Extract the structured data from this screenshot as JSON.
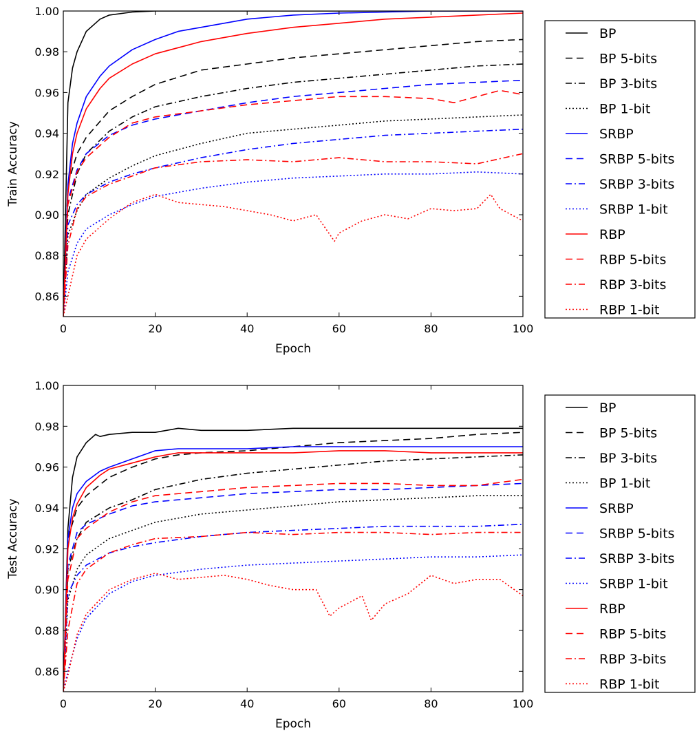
{
  "chart_data": [
    {
      "type": "line",
      "xlabel": "Epoch",
      "ylabel": "Train Accuracy",
      "xlim": [
        0,
        100
      ],
      "ylim": [
        0.85,
        1.0
      ],
      "xticks": [
        0,
        20,
        40,
        60,
        80,
        100
      ],
      "yticks": [
        0.86,
        0.88,
        0.9,
        0.92,
        0.94,
        0.96,
        0.98,
        1.0
      ],
      "ytick_labels": [
        "0.86",
        "0.88",
        "0.90",
        "0.92",
        "0.94",
        "0.96",
        "0.98",
        "1.00"
      ],
      "grid": false,
      "legend": "outside-right",
      "series": [
        {
          "name": "BP",
          "color": "#000000",
          "style": "solid",
          "x": [
            0,
            1,
            2,
            3,
            5,
            8,
            10,
            15,
            20,
            100
          ],
          "y": [
            0.85,
            0.955,
            0.972,
            0.98,
            0.99,
            0.996,
            0.998,
            0.9995,
            1.0,
            1.0
          ]
        },
        {
          "name": "BP 5-bits",
          "color": "#000000",
          "style": "dashed",
          "x": [
            0,
            1,
            3,
            5,
            10,
            15,
            20,
            30,
            40,
            50,
            60,
            70,
            80,
            90,
            100
          ],
          "y": [
            0.85,
            0.915,
            0.93,
            0.938,
            0.951,
            0.958,
            0.964,
            0.971,
            0.974,
            0.977,
            0.979,
            0.981,
            0.983,
            0.985,
            0.986
          ]
        },
        {
          "name": "BP 3-bits",
          "color": "#000000",
          "style": "dashdot",
          "x": [
            0,
            1,
            3,
            5,
            10,
            15,
            20,
            30,
            40,
            50,
            60,
            70,
            80,
            90,
            100
          ],
          "y": [
            0.85,
            0.9,
            0.92,
            0.93,
            0.941,
            0.948,
            0.953,
            0.958,
            0.962,
            0.965,
            0.967,
            0.969,
            0.971,
            0.973,
            0.974
          ]
        },
        {
          "name": "BP 1-bit",
          "color": "#000000",
          "style": "dotted",
          "x": [
            0,
            1,
            3,
            5,
            10,
            15,
            20,
            30,
            40,
            50,
            60,
            70,
            80,
            90,
            100
          ],
          "y": [
            0.85,
            0.89,
            0.902,
            0.91,
            0.918,
            0.924,
            0.929,
            0.935,
            0.94,
            0.942,
            0.944,
            0.946,
            0.947,
            0.948,
            0.949
          ]
        },
        {
          "name": "SRBP",
          "color": "#0000ff",
          "style": "solid",
          "x": [
            0,
            1,
            2,
            3,
            5,
            8,
            10,
            15,
            20,
            25,
            30,
            40,
            50,
            60,
            70,
            80,
            100
          ],
          "y": [
            0.85,
            0.915,
            0.935,
            0.945,
            0.958,
            0.968,
            0.973,
            0.981,
            0.986,
            0.99,
            0.992,
            0.996,
            0.998,
            0.999,
            0.9995,
            1.0,
            1.0
          ]
        },
        {
          "name": "SRBP 5-bits",
          "color": "#0000ff",
          "style": "dashed",
          "x": [
            0,
            1,
            3,
            5,
            10,
            15,
            20,
            30,
            40,
            50,
            60,
            70,
            80,
            90,
            100
          ],
          "y": [
            0.85,
            0.907,
            0.922,
            0.93,
            0.939,
            0.944,
            0.947,
            0.951,
            0.955,
            0.958,
            0.96,
            0.962,
            0.964,
            0.965,
            0.966
          ]
        },
        {
          "name": "SRBP 3-bits",
          "color": "#0000ff",
          "style": "dashdot",
          "x": [
            0,
            1,
            3,
            5,
            10,
            15,
            20,
            30,
            40,
            50,
            60,
            70,
            80,
            90,
            100
          ],
          "y": [
            0.85,
            0.895,
            0.905,
            0.91,
            0.916,
            0.92,
            0.923,
            0.928,
            0.932,
            0.935,
            0.937,
            0.939,
            0.94,
            0.941,
            0.942
          ]
        },
        {
          "name": "SRBP 1-bit",
          "color": "#0000ff",
          "style": "dotted",
          "x": [
            0,
            1,
            3,
            5,
            10,
            15,
            20,
            30,
            40,
            50,
            60,
            70,
            80,
            90,
            100
          ],
          "y": [
            0.85,
            0.872,
            0.886,
            0.893,
            0.9,
            0.905,
            0.909,
            0.913,
            0.916,
            0.918,
            0.919,
            0.92,
            0.92,
            0.921,
            0.92
          ]
        },
        {
          "name": "RBP",
          "color": "#ff0000",
          "style": "solid",
          "x": [
            0,
            1,
            2,
            3,
            5,
            8,
            10,
            15,
            20,
            25,
            30,
            40,
            50,
            60,
            70,
            80,
            90,
            100
          ],
          "y": [
            0.85,
            0.91,
            0.93,
            0.94,
            0.952,
            0.962,
            0.967,
            0.974,
            0.979,
            0.982,
            0.985,
            0.989,
            0.992,
            0.994,
            0.996,
            0.997,
            0.998,
            0.999
          ]
        },
        {
          "name": "RBP 5-bits",
          "color": "#ff0000",
          "style": "dashed",
          "x": [
            0,
            1,
            3,
            5,
            10,
            15,
            20,
            30,
            40,
            50,
            60,
            70,
            80,
            85,
            90,
            95,
            100
          ],
          "y": [
            0.85,
            0.905,
            0.921,
            0.928,
            0.938,
            0.945,
            0.948,
            0.951,
            0.954,
            0.956,
            0.958,
            0.958,
            0.957,
            0.955,
            0.958,
            0.961,
            0.959
          ]
        },
        {
          "name": "RBP 3-bits",
          "color": "#ff0000",
          "style": "dashdot",
          "x": [
            0,
            1,
            3,
            5,
            10,
            15,
            20,
            30,
            40,
            50,
            60,
            70,
            80,
            90,
            100
          ],
          "y": [
            0.85,
            0.885,
            0.903,
            0.909,
            0.915,
            0.919,
            0.923,
            0.926,
            0.927,
            0.926,
            0.928,
            0.926,
            0.926,
            0.925,
            0.93
          ]
        },
        {
          "name": "RBP 1-bit",
          "color": "#ff0000",
          "style": "dotted",
          "x": [
            0,
            1,
            3,
            5,
            10,
            15,
            20,
            25,
            30,
            35,
            40,
            45,
            50,
            55,
            59,
            60,
            65,
            70,
            75,
            80,
            85,
            90,
            93,
            95,
            100
          ],
          "y": [
            0.85,
            0.86,
            0.88,
            0.888,
            0.898,
            0.906,
            0.91,
            0.906,
            0.905,
            0.904,
            0.902,
            0.9,
            0.897,
            0.9,
            0.887,
            0.891,
            0.897,
            0.9,
            0.898,
            0.903,
            0.902,
            0.903,
            0.91,
            0.903,
            0.897
          ]
        }
      ]
    },
    {
      "type": "line",
      "xlabel": "Epoch",
      "ylabel": "Test Accuracy",
      "xlim": [
        0,
        100
      ],
      "ylim": [
        0.85,
        1.0
      ],
      "xticks": [
        0,
        20,
        40,
        60,
        80,
        100
      ],
      "yticks": [
        0.86,
        0.88,
        0.9,
        0.92,
        0.94,
        0.96,
        0.98,
        1.0
      ],
      "ytick_labels": [
        "0.86",
        "0.88",
        "0.90",
        "0.92",
        "0.94",
        "0.96",
        "0.98",
        "1.00"
      ],
      "grid": false,
      "legend": "outside-right",
      "series": [
        {
          "name": "BP",
          "color": "#000000",
          "style": "solid",
          "x": [
            0,
            1,
            2,
            3,
            5,
            7,
            8,
            10,
            15,
            20,
            25,
            30,
            40,
            50,
            60,
            70,
            80,
            90,
            100
          ],
          "y": [
            0.85,
            0.93,
            0.955,
            0.965,
            0.972,
            0.976,
            0.975,
            0.976,
            0.977,
            0.977,
            0.979,
            0.978,
            0.978,
            0.979,
            0.979,
            0.979,
            0.979,
            0.979,
            0.979
          ]
        },
        {
          "name": "BP 5-bits",
          "color": "#000000",
          "style": "dashed",
          "x": [
            0,
            1,
            3,
            5,
            10,
            15,
            20,
            25,
            30,
            40,
            50,
            60,
            70,
            80,
            90,
            100
          ],
          "y": [
            0.85,
            0.925,
            0.94,
            0.946,
            0.955,
            0.96,
            0.964,
            0.966,
            0.967,
            0.968,
            0.97,
            0.972,
            0.973,
            0.974,
            0.976,
            0.977
          ]
        },
        {
          "name": "BP 3-bits",
          "color": "#000000",
          "style": "dashdot",
          "x": [
            0,
            1,
            3,
            5,
            10,
            15,
            20,
            30,
            40,
            50,
            60,
            70,
            80,
            90,
            100
          ],
          "y": [
            0.85,
            0.91,
            0.925,
            0.933,
            0.94,
            0.944,
            0.949,
            0.954,
            0.957,
            0.959,
            0.961,
            0.963,
            0.964,
            0.965,
            0.966
          ]
        },
        {
          "name": "BP 1-bit",
          "color": "#000000",
          "style": "dotted",
          "x": [
            0,
            1,
            3,
            5,
            10,
            15,
            20,
            30,
            40,
            50,
            60,
            70,
            80,
            90,
            100
          ],
          "y": [
            0.85,
            0.895,
            0.91,
            0.917,
            0.925,
            0.929,
            0.933,
            0.937,
            0.939,
            0.941,
            0.943,
            0.944,
            0.945,
            0.946,
            0.946
          ]
        },
        {
          "name": "SRBP",
          "color": "#0000ff",
          "style": "solid",
          "x": [
            0,
            1,
            2,
            3,
            5,
            8,
            10,
            15,
            20,
            25,
            30,
            40,
            50,
            60,
            70,
            80,
            90,
            100
          ],
          "y": [
            0.85,
            0.925,
            0.94,
            0.947,
            0.953,
            0.958,
            0.96,
            0.964,
            0.968,
            0.969,
            0.969,
            0.969,
            0.97,
            0.97,
            0.97,
            0.97,
            0.97,
            0.97
          ]
        },
        {
          "name": "SRBP 5-bits",
          "color": "#0000ff",
          "style": "dashed",
          "x": [
            0,
            1,
            3,
            5,
            10,
            15,
            20,
            30,
            40,
            50,
            60,
            70,
            80,
            90,
            100
          ],
          "y": [
            0.85,
            0.912,
            0.928,
            0.932,
            0.937,
            0.941,
            0.943,
            0.945,
            0.947,
            0.948,
            0.949,
            0.949,
            0.95,
            0.951,
            0.952
          ]
        },
        {
          "name": "SRBP 3-bits",
          "color": "#0000ff",
          "style": "dashdot",
          "x": [
            0,
            1,
            3,
            5,
            10,
            15,
            20,
            30,
            40,
            50,
            60,
            70,
            80,
            90,
            100
          ],
          "y": [
            0.85,
            0.898,
            0.907,
            0.912,
            0.918,
            0.921,
            0.923,
            0.926,
            0.928,
            0.929,
            0.93,
            0.931,
            0.931,
            0.931,
            0.932
          ]
        },
        {
          "name": "SRBP 1-bit",
          "color": "#0000ff",
          "style": "dotted",
          "x": [
            0,
            1,
            3,
            5,
            10,
            15,
            20,
            30,
            40,
            50,
            60,
            70,
            80,
            90,
            100
          ],
          "y": [
            0.85,
            0.86,
            0.876,
            0.886,
            0.898,
            0.904,
            0.907,
            0.91,
            0.912,
            0.913,
            0.914,
            0.915,
            0.916,
            0.916,
            0.917
          ]
        },
        {
          "name": "RBP",
          "color": "#ff0000",
          "style": "solid",
          "x": [
            0,
            1,
            2,
            3,
            5,
            8,
            10,
            15,
            20,
            25,
            30,
            40,
            50,
            60,
            70,
            80,
            90,
            100
          ],
          "y": [
            0.85,
            0.92,
            0.935,
            0.942,
            0.95,
            0.956,
            0.959,
            0.962,
            0.965,
            0.967,
            0.967,
            0.967,
            0.967,
            0.968,
            0.968,
            0.967,
            0.967,
            0.967
          ]
        },
        {
          "name": "RBP 5-bits",
          "color": "#ff0000",
          "style": "dashed",
          "x": [
            0,
            1,
            3,
            5,
            10,
            15,
            20,
            30,
            40,
            50,
            60,
            70,
            80,
            90,
            100
          ],
          "y": [
            0.85,
            0.905,
            0.925,
            0.93,
            0.938,
            0.943,
            0.946,
            0.948,
            0.95,
            0.951,
            0.952,
            0.952,
            0.951,
            0.951,
            0.954
          ]
        },
        {
          "name": "RBP 3-bits",
          "color": "#ff0000",
          "style": "dashdot",
          "x": [
            0,
            1,
            3,
            5,
            10,
            15,
            20,
            30,
            40,
            50,
            60,
            70,
            80,
            90,
            100
          ],
          "y": [
            0.85,
            0.88,
            0.903,
            0.91,
            0.918,
            0.922,
            0.925,
            0.926,
            0.928,
            0.927,
            0.928,
            0.928,
            0.927,
            0.928,
            0.928
          ]
        },
        {
          "name": "RBP 1-bit",
          "color": "#ff0000",
          "style": "dotted",
          "x": [
            0,
            1,
            3,
            5,
            10,
            15,
            20,
            25,
            30,
            35,
            40,
            45,
            50,
            55,
            58,
            60,
            65,
            67,
            70,
            75,
            80,
            85,
            90,
            95,
            100
          ],
          "y": [
            0.85,
            0.858,
            0.878,
            0.888,
            0.9,
            0.905,
            0.908,
            0.905,
            0.906,
            0.907,
            0.905,
            0.902,
            0.9,
            0.9,
            0.887,
            0.891,
            0.897,
            0.885,
            0.893,
            0.898,
            0.907,
            0.903,
            0.905,
            0.905,
            0.897
          ]
        }
      ]
    }
  ]
}
